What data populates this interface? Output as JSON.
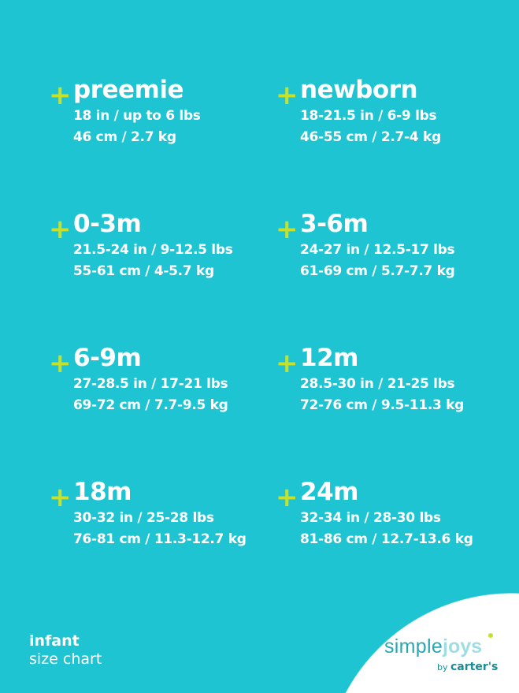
{
  "sizes": [
    {
      "name": "preemie",
      "imperial": "18 in / up to 6 lbs",
      "metric": "46 cm / 2.7 kg"
    },
    {
      "name": "newborn",
      "imperial": "18-21.5 in / 6-9 lbs",
      "metric": "46-55 cm / 2.7-4 kg"
    },
    {
      "name": "0-3m",
      "imperial": "21.5-24 in / 9-12.5 lbs",
      "metric": "55-61 cm / 4-5.7 kg"
    },
    {
      "name": "3-6m",
      "imperial": "24-27 in / 12.5-17 lbs",
      "metric": "61-69 cm / 5.7-7.7 kg"
    },
    {
      "name": "6-9m",
      "imperial": "27-28.5 in / 17-21 lbs",
      "metric": "69-72 cm / 7.7-9.5 kg"
    },
    {
      "name": "12m",
      "imperial": "28.5-30 in / 21-25 lbs",
      "metric": "72-76 cm / 9.5-11.3 kg"
    },
    {
      "name": "18m",
      "imperial": "30-32 in / 25-28 lbs",
      "metric": "76-81 cm / 11.3-12.7 kg"
    },
    {
      "name": "24m",
      "imperial": "32-34 in / 28-30 lbs",
      "metric": "81-86 cm / 12.7-13.6 kg"
    }
  ],
  "plus_symbol": "+",
  "footer": {
    "line1": "infant",
    "line2": "size chart"
  },
  "logo": {
    "simple": "simple",
    "joys": "joys",
    "by": "by",
    "brand": "carter's"
  },
  "colors": {
    "background": "#1fc4d2",
    "accent": "#c7e02b",
    "text": "#ffffff"
  }
}
